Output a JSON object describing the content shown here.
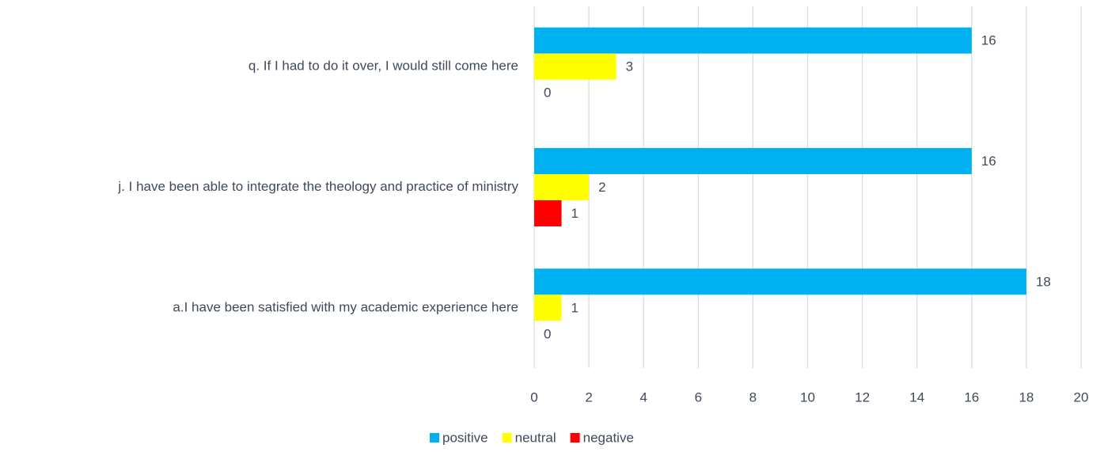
{
  "chart_data": {
    "type": "bar",
    "orientation": "horizontal",
    "categories": [
      "q. If I had to do it over, I would still come here",
      "j. I have been able to integrate the theology and practice of ministry",
      "a.I have been satisfied with my academic experience here"
    ],
    "series": [
      {
        "name": "positive",
        "color": "#00b0f0",
        "values": [
          16,
          16,
          18
        ]
      },
      {
        "name": "neutral",
        "color": "#ffff00",
        "values": [
          3,
          2,
          1
        ]
      },
      {
        "name": "negative",
        "color": "#ff0000",
        "values": [
          0,
          1,
          0
        ]
      }
    ],
    "xlim": [
      0,
      20
    ],
    "xticks": [
      0,
      2,
      4,
      6,
      8,
      10,
      12,
      14,
      16,
      18,
      20
    ],
    "grid": true,
    "legend": "bottom"
  }
}
